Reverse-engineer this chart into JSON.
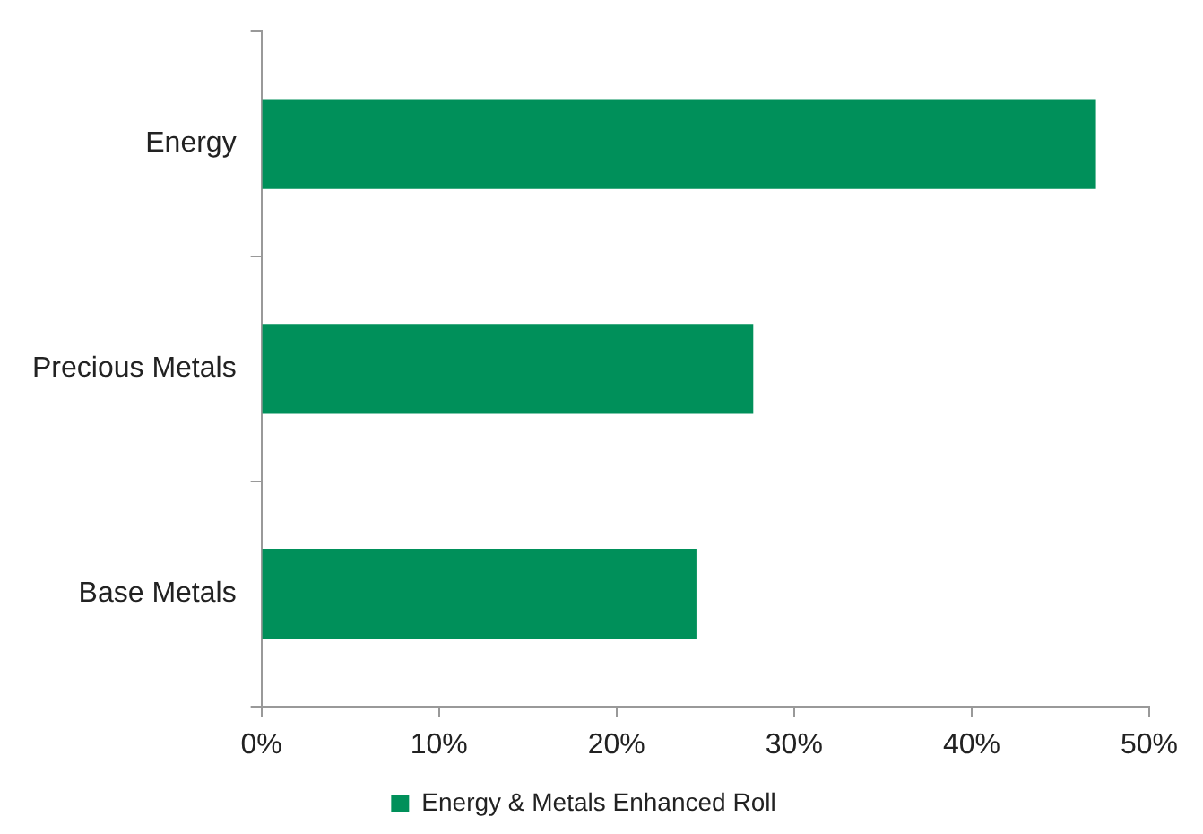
{
  "chart_data": {
    "type": "bar",
    "orientation": "horizontal",
    "categories": [
      "Energy",
      "Precious Metals",
      "Base Metals"
    ],
    "series": [
      {
        "name": "Energy & Metals Enhanced Roll",
        "color": "#00905a",
        "values": [
          47,
          27.7,
          24.5
        ]
      }
    ],
    "xlim": [
      0,
      50
    ],
    "xticks": [
      {
        "value": 0,
        "label": "0%"
      },
      {
        "value": 10,
        "label": "10%"
      },
      {
        "value": 20,
        "label": "20%"
      },
      {
        "value": 30,
        "label": "30%"
      },
      {
        "value": 40,
        "label": "40%"
      },
      {
        "value": 50,
        "label": "50%"
      }
    ],
    "grid": false,
    "legend": "bottom"
  }
}
